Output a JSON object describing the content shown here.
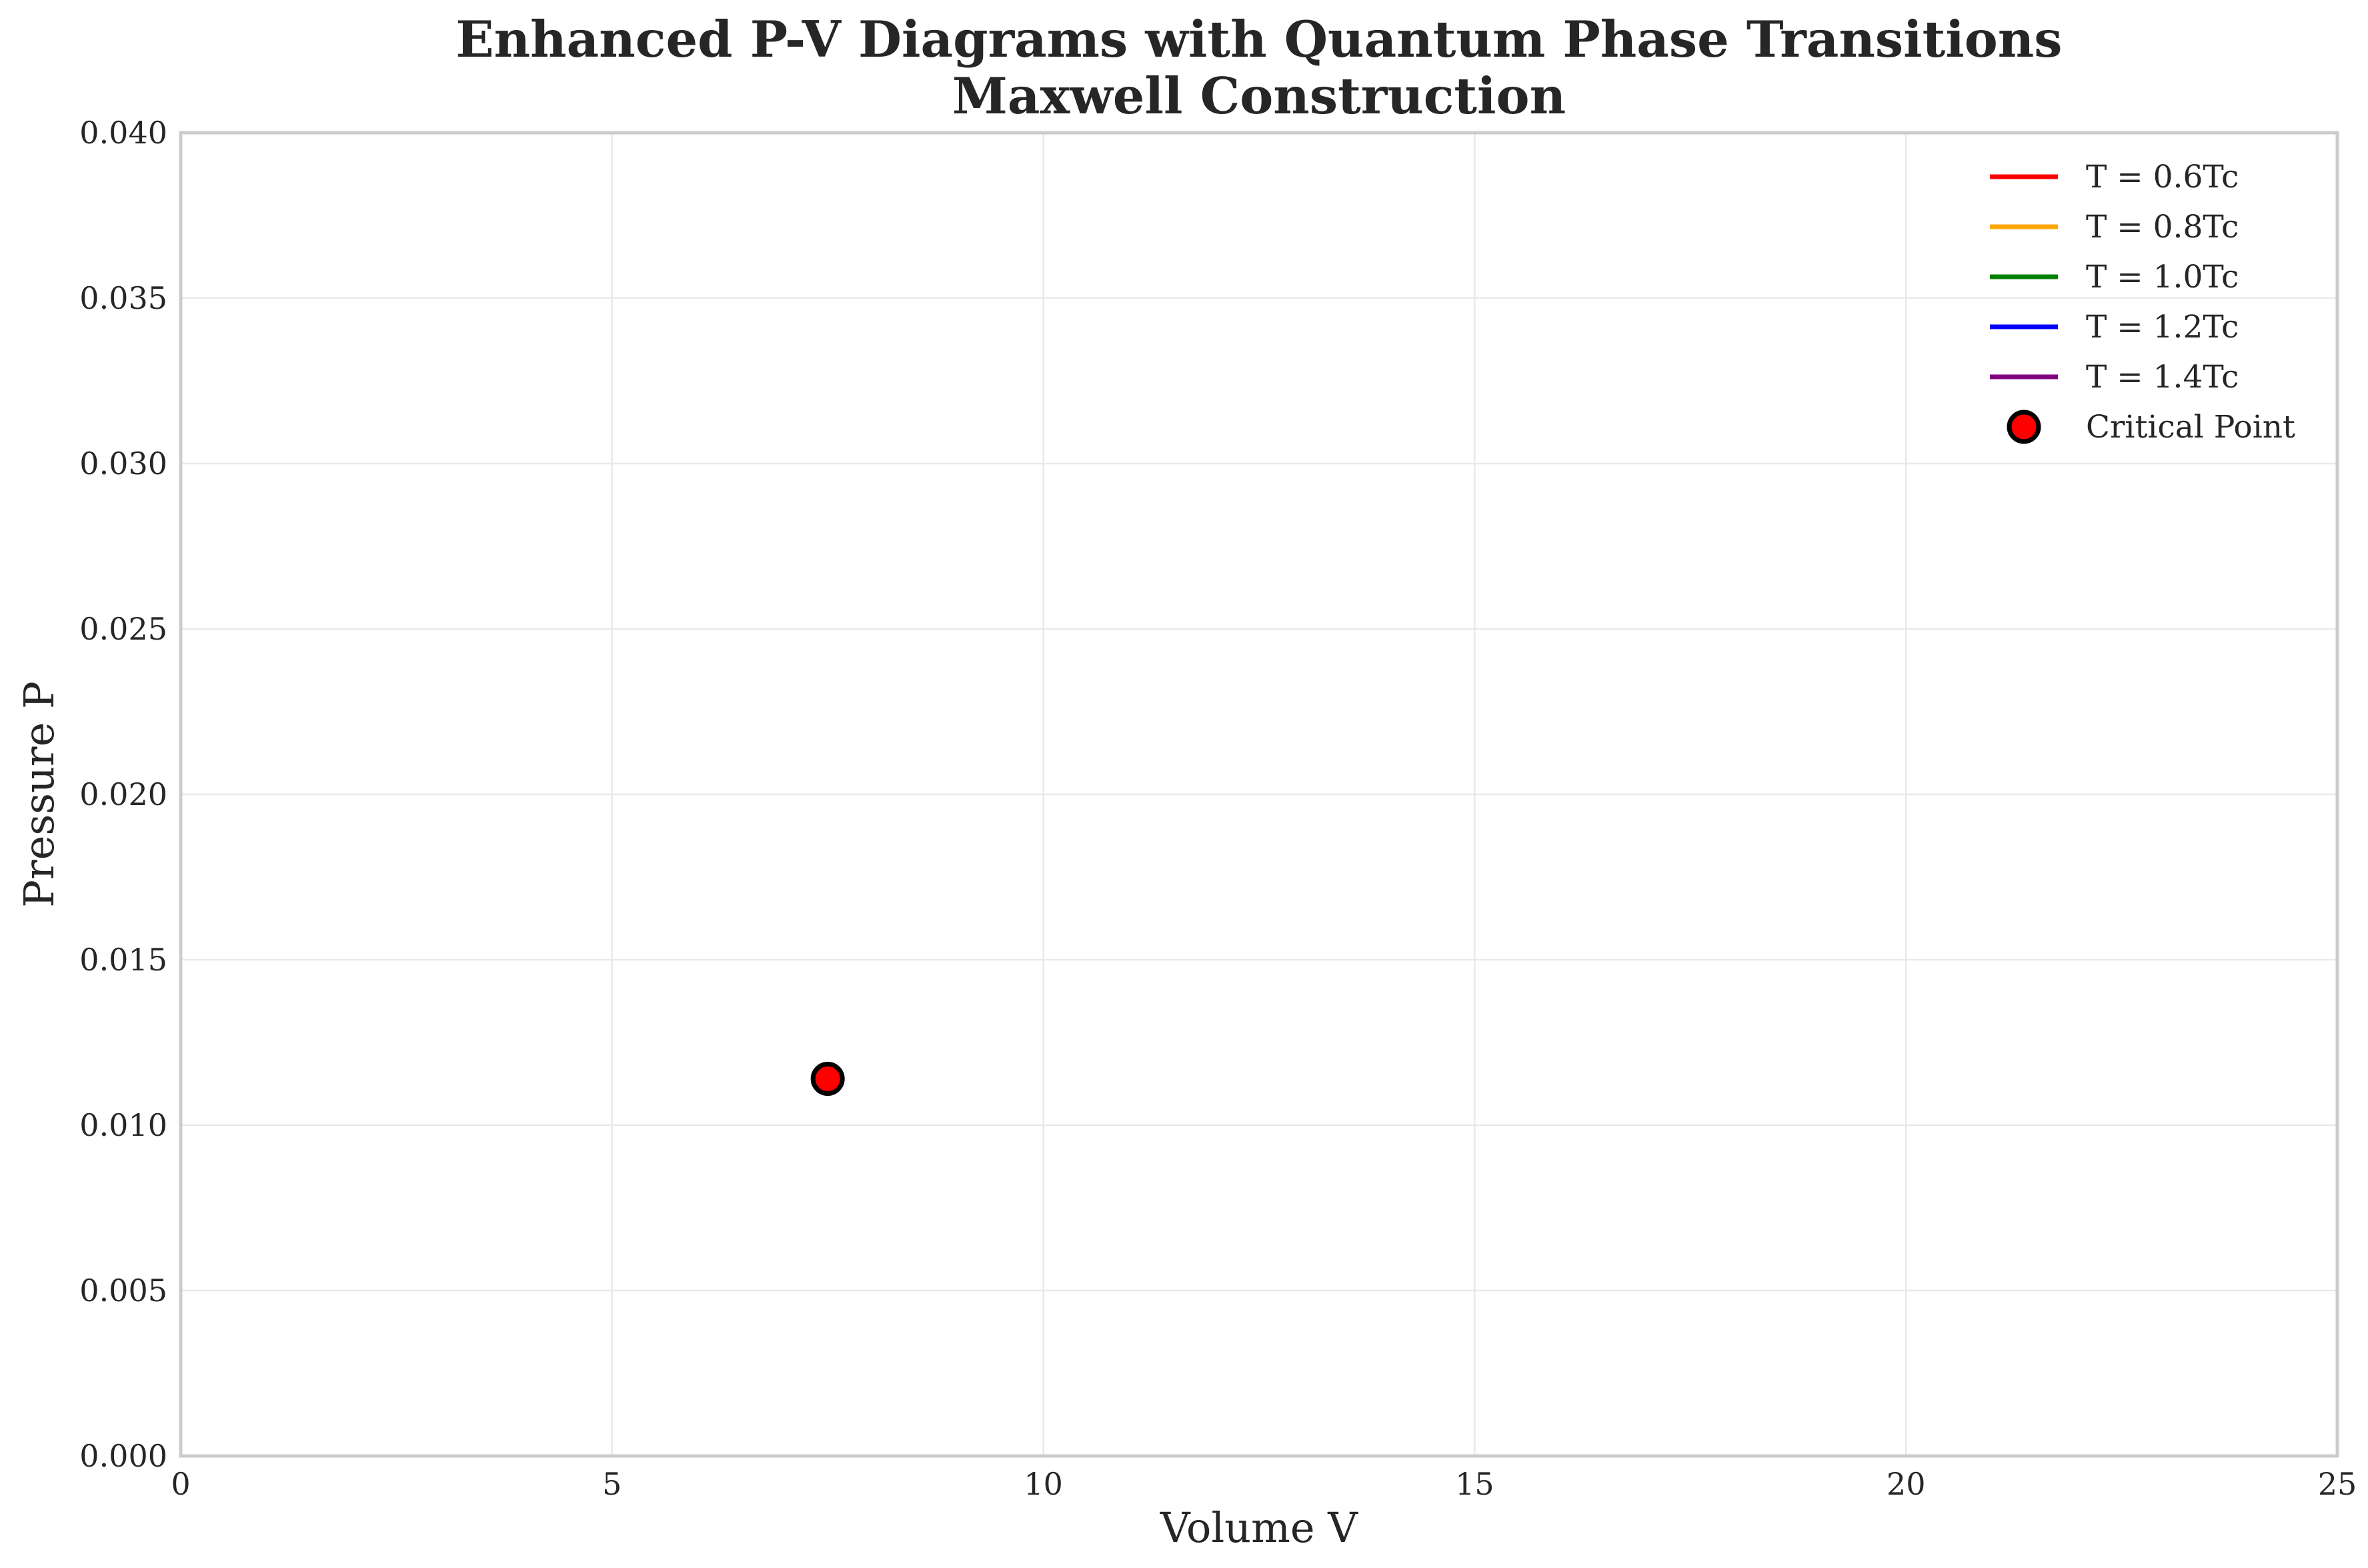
{
  "chart_data": {
    "type": "scatter",
    "title_lines": [
      "Enhanced P-V Diagrams with Quantum Phase Transitions",
      "Maxwell Construction"
    ],
    "xlabel": "Volume V",
    "ylabel": "Pressure P",
    "xlim": [
      0,
      25
    ],
    "ylim": [
      0,
      0.04
    ],
    "x_ticks": [
      0,
      5,
      10,
      15,
      20,
      25
    ],
    "x_tick_labels": [
      "0",
      "5",
      "10",
      "15",
      "20",
      "25"
    ],
    "y_ticks": [
      0,
      0.005,
      0.01,
      0.015,
      0.02,
      0.025,
      0.03,
      0.035,
      0.04
    ],
    "y_tick_labels": [
      "0.000",
      "0.005",
      "0.010",
      "0.015",
      "0.020",
      "0.025",
      "0.030",
      "0.035",
      "0.040"
    ],
    "grid": true,
    "legend_position": "top-right",
    "series": [
      {
        "name": "T = 0.6Tc",
        "kind": "line",
        "color": "#ff0000",
        "x": [],
        "y": []
      },
      {
        "name": "T = 0.8Tc",
        "kind": "line",
        "color": "#ffa500",
        "x": [],
        "y": []
      },
      {
        "name": "T = 1.0Tc",
        "kind": "line",
        "color": "#008000",
        "x": [],
        "y": []
      },
      {
        "name": "T = 1.2Tc",
        "kind": "line",
        "color": "#0000ff",
        "x": [],
        "y": []
      },
      {
        "name": "T = 1.4Tc",
        "kind": "line",
        "color": "#800080",
        "x": [],
        "y": []
      },
      {
        "name": "Critical Point",
        "kind": "marker",
        "color": "#ff0000",
        "edge_color": "#000000",
        "x": [
          7.5
        ],
        "y": [
          0.0114
        ]
      }
    ]
  }
}
